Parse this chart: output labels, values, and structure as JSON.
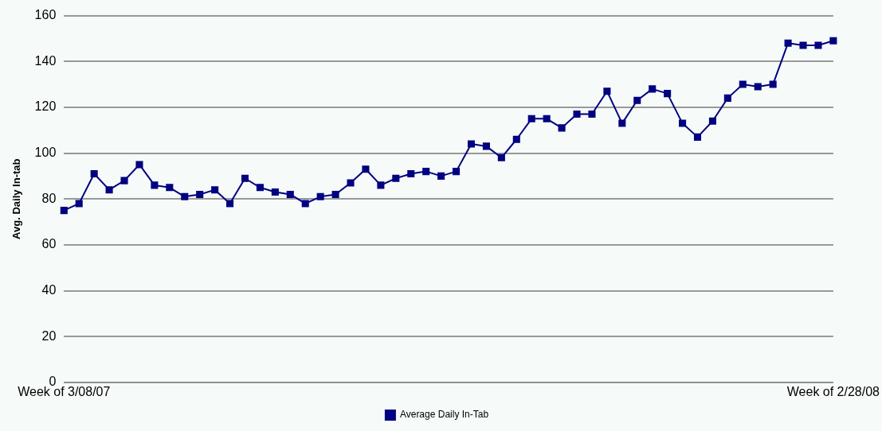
{
  "chart_data": {
    "type": "line",
    "ylabel": "Avg. Daily In-tab",
    "categories": [
      "Week of 3/08/07",
      null,
      null,
      null,
      null,
      null,
      null,
      null,
      null,
      null,
      null,
      null,
      null,
      null,
      null,
      null,
      null,
      null,
      null,
      null,
      null,
      null,
      null,
      null,
      null,
      null,
      null,
      null,
      null,
      null,
      null,
      null,
      null,
      null,
      null,
      null,
      null,
      null,
      null,
      null,
      null,
      null,
      null,
      null,
      null,
      null,
      null,
      null,
      null,
      null,
      null,
      "Week of 2/28/08"
    ],
    "series": [
      {
        "name": "Average Daily In-Tab",
        "color": "#000080",
        "values": [
          75,
          78,
          91,
          84,
          88,
          95,
          86,
          85,
          81,
          82,
          84,
          78,
          89,
          85,
          83,
          82,
          78,
          81,
          82,
          87,
          93,
          86,
          89,
          91,
          92,
          90,
          92,
          104,
          103,
          98,
          106,
          115,
          115,
          111,
          117,
          117,
          127,
          113,
          123,
          128,
          126,
          113,
          107,
          114,
          124,
          130,
          129,
          130,
          148,
          147,
          147,
          149
        ]
      }
    ],
    "ylim": [
      0,
      160
    ],
    "yticks": [
      0,
      20,
      40,
      60,
      80,
      100,
      120,
      140,
      160
    ],
    "grid": "y",
    "legend": "bottom",
    "marker": "square",
    "line_style": "solid"
  }
}
